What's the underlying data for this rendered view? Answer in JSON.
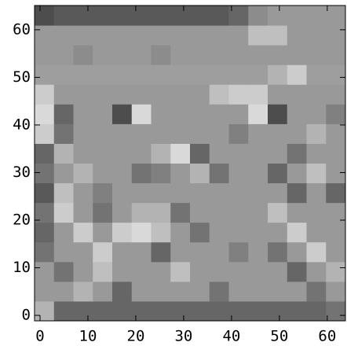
{
  "chart_data": {
    "type": "heatmap",
    "colormap": "gray",
    "origin": "lower",
    "xlim": [
      -1.15,
      63.8
    ],
    "ylim": [
      -1.15,
      65.1
    ],
    "xticks": [
      0,
      10,
      20,
      30,
      40,
      50,
      60
    ],
    "yticks": [
      0,
      10,
      20,
      30,
      40,
      50,
      60
    ],
    "z": [
      [
        0.7,
        0.4,
        0.4,
        0.4,
        0.4,
        0.4,
        0.4,
        0.4,
        0.4,
        0.4,
        0.4,
        0.4,
        0.4,
        0.4,
        0.4,
        0.45
      ],
      [
        0.6,
        0.6,
        0.7,
        0.6,
        0.4,
        0.6,
        0.6,
        0.6,
        0.6,
        0.45,
        0.6,
        0.6,
        0.6,
        0.6,
        0.45,
        0.6
      ],
      [
        0.6,
        0.45,
        0.6,
        0.75,
        0.6,
        0.6,
        0.6,
        0.75,
        0.6,
        0.6,
        0.6,
        0.6,
        0.6,
        0.4,
        0.6,
        0.7
      ],
      [
        0.45,
        0.6,
        0.6,
        0.8,
        0.6,
        0.6,
        0.4,
        0.6,
        0.6,
        0.6,
        0.5,
        0.6,
        0.45,
        0.6,
        0.8,
        0.6
      ],
      [
        0.4,
        0.6,
        0.8,
        0.6,
        0.8,
        0.85,
        0.75,
        0.6,
        0.45,
        0.6,
        0.6,
        0.6,
        0.6,
        0.8,
        0.6,
        0.6
      ],
      [
        0.45,
        0.8,
        0.6,
        0.45,
        0.6,
        0.7,
        0.7,
        0.45,
        0.6,
        0.6,
        0.6,
        0.6,
        0.75,
        0.6,
        0.6,
        0.6
      ],
      [
        0.35,
        0.75,
        0.6,
        0.5,
        0.6,
        0.6,
        0.6,
        0.6,
        0.6,
        0.6,
        0.6,
        0.6,
        0.6,
        0.4,
        0.6,
        0.4
      ],
      [
        0.45,
        0.6,
        0.7,
        0.6,
        0.6,
        0.45,
        0.5,
        0.6,
        0.7,
        0.45,
        0.6,
        0.6,
        0.4,
        0.6,
        0.75,
        0.6
      ],
      [
        0.4,
        0.7,
        0.6,
        0.6,
        0.6,
        0.6,
        0.7,
        0.85,
        0.4,
        0.6,
        0.6,
        0.6,
        0.6,
        0.45,
        0.6,
        0.6
      ],
      [
        0.8,
        0.45,
        0.6,
        0.6,
        0.6,
        0.6,
        0.6,
        0.6,
        0.6,
        0.6,
        0.5,
        0.6,
        0.6,
        0.6,
        0.7,
        0.6
      ],
      [
        0.85,
        0.4,
        0.6,
        0.6,
        0.3,
        0.85,
        0.6,
        0.6,
        0.6,
        0.6,
        0.6,
        0.85,
        0.3,
        0.6,
        0.6,
        0.5
      ],
      [
        0.8,
        0.6,
        0.6,
        0.6,
        0.6,
        0.6,
        0.6,
        0.6,
        0.6,
        0.75,
        0.8,
        0.8,
        0.6,
        0.6,
        0.6,
        0.6
      ],
      [
        0.62,
        0.62,
        0.62,
        0.62,
        0.62,
        0.62,
        0.62,
        0.62,
        0.62,
        0.62,
        0.62,
        0.62,
        0.7,
        0.8,
        0.62,
        0.62
      ],
      [
        0.6,
        0.6,
        0.55,
        0.6,
        0.6,
        0.6,
        0.55,
        0.6,
        0.6,
        0.6,
        0.6,
        0.6,
        0.6,
        0.6,
        0.6,
        0.6
      ],
      [
        0.6,
        0.6,
        0.6,
        0.6,
        0.6,
        0.6,
        0.6,
        0.6,
        0.6,
        0.6,
        0.6,
        0.75,
        0.75,
        0.6,
        0.6,
        0.6
      ],
      [
        0.3,
        0.35,
        0.35,
        0.35,
        0.35,
        0.35,
        0.35,
        0.35,
        0.35,
        0.35,
        0.4,
        0.55,
        0.6,
        0.6,
        0.6,
        0.6
      ]
    ]
  }
}
